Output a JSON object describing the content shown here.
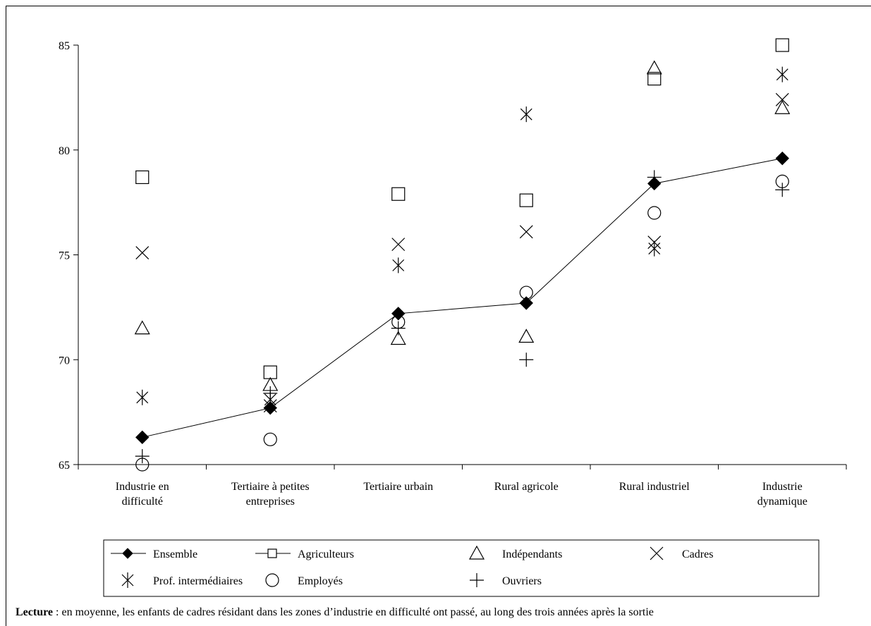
{
  "chart_data": {
    "type": "scatter",
    "categories": [
      "Industrie en\ndifficulté",
      "Tertiaire à petites\nentreprises",
      "Tertiaire urbain",
      "Rural agricole",
      "Rural industriel",
      "Industrie\ndynamique"
    ],
    "ylim": [
      65,
      85
    ],
    "yticks": [
      65,
      70,
      75,
      80,
      85
    ],
    "grid": false,
    "legend_position": "bottom",
    "series": [
      {
        "name": "Ensemble",
        "marker": "filled-diamond",
        "line": true,
        "values": [
          66.3,
          67.7,
          72.2,
          72.7,
          78.4,
          79.6
        ]
      },
      {
        "name": "Agriculteurs",
        "marker": "square",
        "line": false,
        "values": [
          78.7,
          69.4,
          77.9,
          77.6,
          83.4,
          85.0
        ]
      },
      {
        "name": "Indépendants",
        "marker": "triangle",
        "line": false,
        "values": [
          71.5,
          68.8,
          71.0,
          71.1,
          83.9,
          82.0
        ]
      },
      {
        "name": "Cadres",
        "marker": "x",
        "line": false,
        "values": [
          75.1,
          67.8,
          75.5,
          76.1,
          75.6,
          82.4
        ]
      },
      {
        "name": "Prof. intermédiaires",
        "marker": "asterisk",
        "line": false,
        "values": [
          68.2,
          68.1,
          74.5,
          81.7,
          75.3,
          83.6
        ]
      },
      {
        "name": "Employés",
        "marker": "circle",
        "line": false,
        "values": [
          65.0,
          66.2,
          71.8,
          73.2,
          77.0,
          78.5
        ]
      },
      {
        "name": "Ouvriers",
        "marker": "plus",
        "line": false,
        "values": [
          65.4,
          68.4,
          71.5,
          70.0,
          78.7,
          78.1
        ]
      }
    ]
  },
  "caption": {
    "bold": "Lecture",
    "text": " : en moyenne, les enfants de cadres résidant dans les zones d’industrie en difficulté ont passé, au long des trois années après la sortie"
  }
}
